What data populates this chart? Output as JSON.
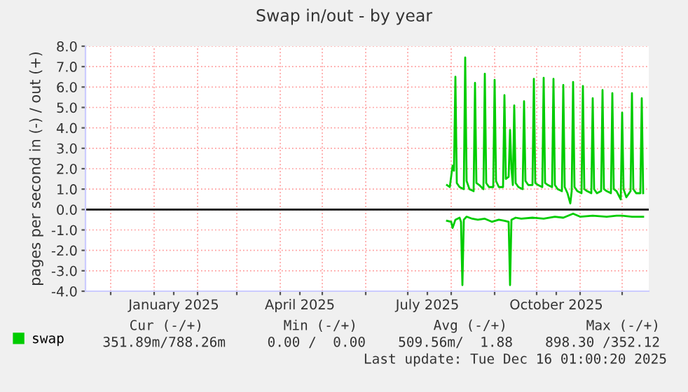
{
  "chart_data": {
    "type": "line",
    "title": "Swap in/out - by year",
    "ylabel": "pages per second in (-) / out (+)",
    "xlim": [
      "2024-11-13",
      "2025-12-20"
    ],
    "xticks": [
      {
        "value": "2024-12-01",
        "label": null
      },
      {
        "value": "2025-01-01",
        "label": null
      },
      {
        "value": "2025-01-15",
        "label": "January 2025"
      },
      {
        "value": "2025-02-01",
        "label": null
      },
      {
        "value": "2025-03-01",
        "label": null
      },
      {
        "value": "2025-04-01",
        "label": null
      },
      {
        "value": "2025-04-15",
        "label": "April 2025"
      },
      {
        "value": "2025-05-01",
        "label": null
      },
      {
        "value": "2025-06-01",
        "label": null
      },
      {
        "value": "2025-07-01",
        "label": null
      },
      {
        "value": "2025-07-15",
        "label": "July 2025"
      },
      {
        "value": "2025-08-01",
        "label": null
      },
      {
        "value": "2025-09-01",
        "label": null
      },
      {
        "value": "2025-10-01",
        "label": null
      },
      {
        "value": "2025-10-15",
        "label": "October 2025"
      },
      {
        "value": "2025-11-01",
        "label": null
      },
      {
        "value": "2025-12-01",
        "label": null
      }
    ],
    "ylim": [
      -4.0,
      8.0
    ],
    "yticks": [
      {
        "value": -4,
        "label": "-4.0"
      },
      {
        "value": -3,
        "label": "-3.0"
      },
      {
        "value": -2,
        "label": "-2.0"
      },
      {
        "value": -1,
        "label": "-1.0"
      },
      {
        "value": 0,
        "label": "0.0"
      },
      {
        "value": 1,
        "label": "1.0"
      },
      {
        "value": 2,
        "label": "2.0"
      },
      {
        "value": 3,
        "label": "3.0"
      },
      {
        "value": 4,
        "label": "4.0"
      },
      {
        "value": 5,
        "label": "5.0"
      },
      {
        "value": 6,
        "label": "6.0"
      },
      {
        "value": 7,
        "label": "7.0"
      },
      {
        "value": 8,
        "label": "8.0"
      }
    ],
    "grid": true,
    "legend": "bottom left",
    "ref_lines": [
      {
        "axis": "y",
        "value": 0,
        "color": "#000000"
      }
    ],
    "series": [
      {
        "name": "swap",
        "color": "#00cc00",
        "x": [
          "2025-07-29",
          "2025-07-31",
          "2025-08-02",
          "2025-08-03",
          "2025-08-04",
          "2025-08-05",
          "2025-08-07",
          "2025-08-10",
          "2025-08-11",
          "2025-08-12",
          "2025-08-14",
          "2025-08-17",
          "2025-08-18",
          "2025-08-19",
          "2025-08-21",
          "2025-08-24",
          "2025-08-25",
          "2025-08-26",
          "2025-08-28",
          "2025-08-31",
          "2025-09-01",
          "2025-09-02",
          "2025-09-04",
          "2025-09-07",
          "2025-09-08",
          "2025-09-09",
          "2025-09-11",
          "2025-09-12",
          "2025-09-13",
          "2025-09-14",
          "2025-09-15",
          "2025-09-16",
          "2025-09-18",
          "2025-09-21",
          "2025-09-22",
          "2025-09-23",
          "2025-09-25",
          "2025-09-28",
          "2025-09-29",
          "2025-09-30",
          "2025-10-02",
          "2025-10-05",
          "2025-10-06",
          "2025-10-07",
          "2025-10-09",
          "2025-10-12",
          "2025-10-13",
          "2025-10-14",
          "2025-10-16",
          "2025-10-19",
          "2025-10-20",
          "2025-10-21",
          "2025-10-23",
          "2025-10-25",
          "2025-10-26",
          "2025-10-27",
          "2025-10-28",
          "2025-10-30",
          "2025-11-02",
          "2025-11-03",
          "2025-11-04",
          "2025-11-06",
          "2025-11-09",
          "2025-11-10",
          "2025-11-11",
          "2025-11-13",
          "2025-11-16",
          "2025-11-17",
          "2025-11-18",
          "2025-11-20",
          "2025-11-23",
          "2025-11-24",
          "2025-11-25",
          "2025-11-27",
          "2025-11-30",
          "2025-12-01",
          "2025-12-02",
          "2025-12-04",
          "2025-12-07",
          "2025-12-08",
          "2025-12-09",
          "2025-12-11",
          "2025-12-14",
          "2025-12-15",
          "2025-12-16"
        ],
        "values": [
          1.2,
          1.1,
          2.15,
          1.9,
          6.5,
          1.3,
          1.1,
          1.0,
          7.45,
          1.4,
          1.0,
          0.9,
          6.2,
          1.3,
          1.2,
          1.0,
          6.65,
          1.3,
          1.1,
          1.1,
          6.35,
          1.4,
          1.1,
          1.1,
          5.6,
          1.5,
          1.6,
          3.9,
          2.0,
          1.2,
          5.1,
          1.3,
          1.1,
          1.0,
          5.3,
          1.4,
          1.2,
          1.2,
          6.4,
          1.3,
          1.2,
          1.1,
          6.45,
          1.3,
          1.2,
          1.1,
          6.4,
          1.2,
          1.0,
          0.9,
          6.1,
          1.1,
          0.8,
          0.3,
          0.9,
          6.25,
          1.1,
          0.9,
          0.8,
          6.05,
          1.0,
          0.9,
          0.8,
          5.45,
          1.0,
          0.8,
          0.9,
          5.85,
          1.0,
          0.9,
          0.8,
          5.7,
          1.0,
          0.9,
          0.5,
          4.75,
          1.0,
          0.6,
          0.9,
          5.7,
          1.0,
          0.8,
          0.8,
          5.45,
          0.8
        ]
      },
      {
        "color": "#00cc00",
        "x": [
          "2025-07-29",
          "2025-08-01",
          "2025-08-02",
          "2025-08-04",
          "2025-08-07",
          "2025-08-08",
          "2025-08-09",
          "2025-08-10",
          "2025-08-12",
          "2025-08-16",
          "2025-08-20",
          "2025-08-25",
          "2025-08-30",
          "2025-09-04",
          "2025-09-08",
          "2025-09-11",
          "2025-09-12",
          "2025-09-13",
          "2025-09-16",
          "2025-09-20",
          "2025-09-28",
          "2025-10-06",
          "2025-10-14",
          "2025-10-20",
          "2025-10-27",
          "2025-11-01",
          "2025-11-10",
          "2025-11-20",
          "2025-11-27",
          "2025-12-01",
          "2025-12-08",
          "2025-12-16"
        ],
        "values": [
          -0.55,
          -0.6,
          -0.9,
          -0.5,
          -0.4,
          -0.6,
          -3.7,
          -0.5,
          -0.35,
          -0.45,
          -0.5,
          -0.45,
          -0.6,
          -0.5,
          -0.55,
          -0.6,
          -3.7,
          -0.5,
          -0.4,
          -0.45,
          -0.4,
          -0.45,
          -0.35,
          -0.4,
          -0.2,
          -0.35,
          -0.3,
          -0.35,
          -0.3,
          -0.3,
          -0.35,
          -0.35
        ]
      }
    ],
    "annotations": [
      "Cur (-/+)",
      "Min (-/+)",
      "Avg (-/+)",
      "Max (-/+)",
      "351.89m/788.26m",
      "0.00 /  0.00",
      "509.56m/  1.88",
      "898.30 /352.12",
      "Last update: Tue Dec 16 01:00:20 2025"
    ]
  }
}
